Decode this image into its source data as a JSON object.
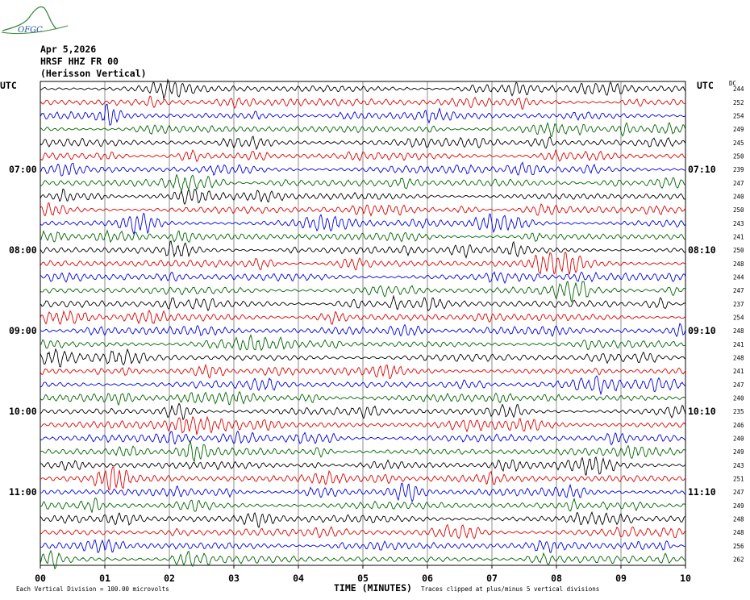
{
  "header": {
    "logo_text": "OFGC",
    "date": "Apr 5,2026",
    "station": "HRSF HHZ FR 00",
    "location": "(Herisson Vertical)"
  },
  "footer": {
    "left_note": "Each Vertical Division =  100.00 microvolts",
    "xlabel": "TIME (MINUTES)",
    "right_note": "Traces clipped at plus/minus 5 vertical divisions"
  },
  "chart_data": {
    "type": "line",
    "title": "",
    "left_axis_label": "UTC",
    "right_axis_label": "UTC",
    "dc_label": "DC",
    "xlabel": "TIME (MINUTES)",
    "xlim": [
      0,
      10
    ],
    "x_ticks": [
      "00",
      "01",
      "02",
      "03",
      "04",
      "05",
      "06",
      "07",
      "08",
      "09",
      "10"
    ],
    "trace_colors": [
      "#000000",
      "#e00000",
      "#0000e0",
      "#006400"
    ],
    "clip_divisions": 5,
    "division_microvolts": 100.0,
    "left_hour_labels": [
      {
        "trace": 6,
        "label": "07:00"
      },
      {
        "trace": 12,
        "label": "08:00"
      },
      {
        "trace": 18,
        "label": "09:00"
      },
      {
        "trace": 24,
        "label": "10:00"
      },
      {
        "trace": 30,
        "label": "11:00"
      }
    ],
    "right_time_labels": [
      {
        "trace": 6,
        "label": "07:10"
      },
      {
        "trace": 12,
        "label": "08:10"
      },
      {
        "trace": 18,
        "label": "09:10"
      },
      {
        "trace": 24,
        "label": "10:10"
      },
      {
        "trace": 30,
        "label": "11:10"
      }
    ],
    "dc_offsets": [
      244,
      252,
      254,
      249,
      245,
      250,
      239,
      247,
      240,
      250,
      243,
      241,
      250,
      248,
      244,
      247,
      237,
      254,
      248,
      241,
      248,
      241,
      247,
      240,
      235,
      246,
      240,
      249,
      243,
      251,
      247,
      249,
      248,
      248,
      256,
      262
    ]
  }
}
